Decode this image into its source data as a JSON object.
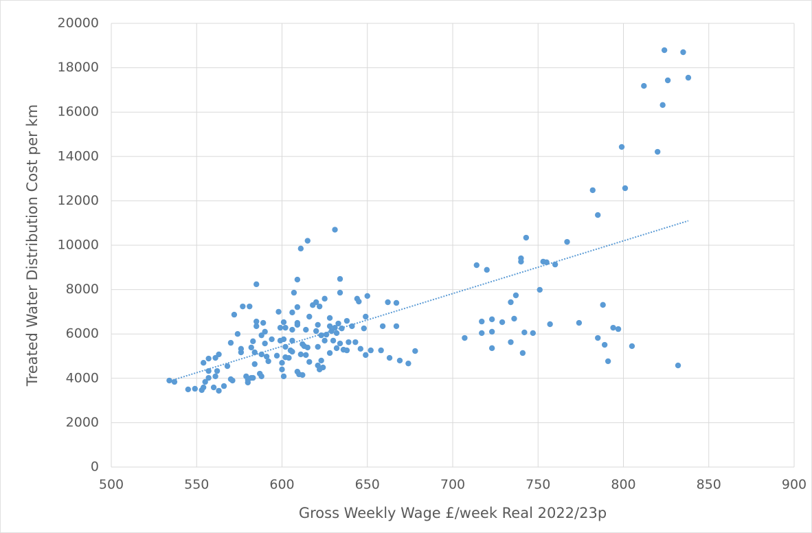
{
  "chart_data": {
    "type": "scatter",
    "xlabel": "Gross Weekly Wage £/week Real 2022/23p",
    "ylabel": "Treated Water Distribution Cost per km",
    "xlim": [
      500,
      900
    ],
    "xticks": [
      500,
      550,
      600,
      650,
      700,
      750,
      800,
      850,
      900
    ],
    "ylim": [
      0,
      20000
    ],
    "yticks": [
      0,
      2000,
      4000,
      6000,
      8000,
      10000,
      12000,
      14000,
      16000,
      18000,
      20000
    ],
    "grid": true,
    "x": [
      534,
      537,
      545,
      549,
      553,
      554,
      554,
      555,
      557,
      557,
      557,
      560,
      561,
      561,
      562,
      563,
      563,
      566,
      568,
      570,
      570,
      571,
      572,
      574,
      576,
      576,
      577,
      579,
      580,
      580,
      581,
      582,
      582,
      583,
      583,
      584,
      584,
      585,
      585,
      585,
      587,
      588,
      588,
      588,
      589,
      590,
      590,
      591,
      592,
      594,
      597,
      598,
      599,
      599,
      600,
      600,
      601,
      601,
      601,
      602,
      602,
      602,
      604,
      605,
      606,
      606,
      606,
      606,
      607,
      609,
      609,
      609,
      609,
      609,
      610,
      611,
      611,
      612,
      612,
      613,
      614,
      614,
      615,
      615,
      616,
      616,
      618,
      620,
      620,
      621,
      621,
      621,
      622,
      622,
      623,
      623,
      624,
      625,
      625,
      626,
      628,
      628,
      628,
      629,
      630,
      631,
      631,
      632,
      632,
      633,
      634,
      634,
      634,
      635,
      636,
      638,
      638,
      639,
      641,
      643,
      644,
      645,
      646,
      648,
      649,
      649,
      650,
      652,
      658,
      659,
      662,
      663,
      667,
      667,
      669,
      674,
      678,
      707,
      714,
      717,
      717,
      720,
      723,
      723,
      723,
      729,
      734,
      734,
      737,
      736,
      740,
      740,
      741,
      742,
      743,
      747,
      751,
      753,
      755,
      757,
      760,
      767,
      774,
      782,
      785,
      785,
      788,
      789,
      791,
      794,
      797,
      799,
      801,
      805,
      820,
      812,
      823,
      824,
      826,
      832,
      835,
      838
    ],
    "series": [
      {
        "color": "#5b9bd5",
        "values": [
          3900,
          3840,
          3500,
          3530,
          3470,
          3590,
          4700,
          3840,
          4890,
          4020,
          4330,
          3590,
          4920,
          4090,
          4330,
          5080,
          3440,
          3650,
          4550,
          5600,
          3960,
          3900,
          6870,
          6000,
          5170,
          5330,
          7240,
          4090,
          3930,
          3810,
          7240,
          4020,
          5390,
          4020,
          5670,
          5170,
          4640,
          8240,
          6350,
          6560,
          4210,
          4090,
          5080,
          5940,
          6500,
          5570,
          6100,
          4980,
          4770,
          5760,
          5020,
          7000,
          6280,
          5700,
          4400,
          4700,
          5760,
          6530,
          4090,
          6280,
          5420,
          4950,
          4920,
          5260,
          5700,
          6970,
          6190,
          5200,
          7860,
          6410,
          4300,
          8450,
          6500,
          7210,
          4180,
          9850,
          5080,
          5540,
          4150,
          5450,
          6190,
          5050,
          10200,
          5390,
          4740,
          6780,
          7300,
          6130,
          7430,
          4580,
          5420,
          6410,
          7240,
          4400,
          4800,
          5940,
          4490,
          5700,
          7590,
          5970,
          6350,
          6720,
          5140,
          6130,
          5700,
          10700,
          6280,
          6040,
          5360,
          6470,
          8480,
          5570,
          7860,
          6250,
          5290,
          6590,
          5260,
          5630,
          6350,
          5630,
          7590,
          7460,
          5330,
          6250,
          5050,
          6780,
          7710,
          5260,
          5260,
          6350,
          7430,
          4920,
          7400,
          6350,
          4800,
          4670,
          5230,
          5820,
          9100,
          6560,
          6040,
          8890,
          6660,
          6100,
          5360,
          6530,
          7430,
          5630,
          7740,
          6690,
          9410,
          9260,
          5140,
          6070,
          10340,
          6040,
          7990,
          9260,
          9230,
          6440,
          9130,
          10150,
          6500,
          12480,
          11360,
          5820,
          7310,
          5510,
          4770,
          6280,
          6220,
          14430,
          12570,
          5450,
          14210,
          17180,
          16320,
          18790,
          17430,
          4580,
          18700,
          17550
        ]
      }
    ],
    "trendline": {
      "x": [
        533,
        838
      ],
      "values": [
        3850,
        11100
      ],
      "color": "#5b9bd5"
    }
  }
}
